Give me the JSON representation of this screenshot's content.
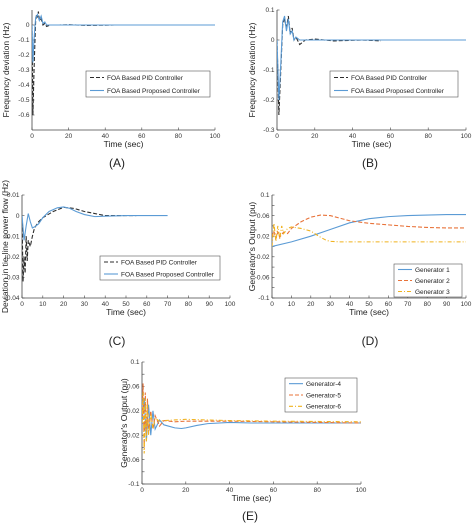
{
  "colors": {
    "blue": "#5b9bd5",
    "dark": "#2d2d2d",
    "orange": "#e8733a",
    "gold": "#f0b21f",
    "axis": "#444444"
  },
  "chart_data": [
    {
      "type": "line",
      "caption": "(A)",
      "xlabel": "Time (sec)",
      "ylabel": "Frequency deviation (Hz)",
      "xlim": [
        0,
        100
      ],
      "ylim": [
        -0.7,
        0.1
      ],
      "xticks": [
        0,
        20,
        40,
        60,
        80,
        100
      ],
      "yticks": [
        -0.6,
        -0.5,
        -0.4,
        -0.3,
        -0.2,
        -0.1,
        0
      ],
      "legend_position": "center-right",
      "series": [
        {
          "name": "FOA Based PID Controller",
          "color": "#2d2d2d",
          "dash": "dashed",
          "x": [
            0,
            0.5,
            1,
            1.5,
            2,
            2.5,
            3,
            3.5,
            4,
            5,
            6,
            7,
            8,
            10,
            15,
            20,
            30,
            45
          ],
          "y": [
            0,
            -0.6,
            -0.35,
            -0.15,
            0.03,
            0.07,
            0.05,
            0.09,
            0.03,
            0.04,
            0,
            0.01,
            -0.01,
            0,
            0,
            0.002,
            -0.003,
            0
          ]
        },
        {
          "name": "FOA Based Proposed Controller",
          "color": "#5b9bd5",
          "dash": "solid",
          "x": [
            0,
            0.5,
            1,
            1.5,
            2,
            3,
            4,
            5,
            6,
            7,
            8,
            10,
            15,
            100
          ],
          "y": [
            0,
            -0.25,
            -0.12,
            -0.03,
            0.05,
            0.07,
            0.03,
            0.06,
            0.01,
            0.02,
            0,
            0,
            0,
            0
          ]
        }
      ]
    },
    {
      "type": "line",
      "caption": "(B)",
      "xlabel": "Time (sec)",
      "ylabel": "Frequency deviation (Hz)",
      "xlim": [
        0,
        100
      ],
      "ylim": [
        -0.3,
        0.1
      ],
      "xticks": [
        0,
        20,
        40,
        60,
        80,
        100
      ],
      "yticks": [
        -0.3,
        -0.2,
        -0.1,
        0,
        0.1
      ],
      "legend_position": "center-right",
      "series": [
        {
          "name": "FOA Based PID Controller",
          "color": "#2d2d2d",
          "dash": "dashed",
          "x": [
            0,
            1,
            2,
            3,
            4,
            5,
            6,
            7,
            8,
            9,
            10,
            12,
            15,
            20,
            30,
            45,
            55
          ],
          "y": [
            0,
            -0.25,
            -0.1,
            0.05,
            0.07,
            0.04,
            0.08,
            0.02,
            0.04,
            0,
            0.01,
            -0.015,
            0,
            0.003,
            -0.003,
            0,
            -0.003
          ]
        },
        {
          "name": "FOA Based Proposed Controller",
          "color": "#5b9bd5",
          "dash": "solid",
          "x": [
            0,
            1,
            2,
            3,
            4,
            5,
            6,
            7,
            8,
            9,
            10,
            12,
            15,
            100
          ],
          "y": [
            0,
            -0.2,
            -0.08,
            0.06,
            0.08,
            0.03,
            0.07,
            0.02,
            0.03,
            0,
            0.01,
            0,
            0,
            0
          ]
        }
      ]
    },
    {
      "type": "line",
      "caption": "(C)",
      "xlabel": "Time (sec)",
      "ylabel": "Deviation in tie-line power flow (Hz)",
      "xlim": [
        0,
        100
      ],
      "ylim": [
        -0.04,
        0.01
      ],
      "xticks": [
        0,
        10,
        20,
        30,
        40,
        50,
        60,
        70,
        80,
        90,
        100
      ],
      "yticks": [
        -0.04,
        -0.03,
        -0.02,
        -0.01,
        0,
        0.01
      ],
      "legend_position": "center-right",
      "series": [
        {
          "name": "FOA Based PID Controller",
          "color": "#2d2d2d",
          "dash": "dashed",
          "x": [
            0,
            0.5,
            1,
            1.5,
            2,
            2.5,
            3,
            4,
            5,
            6,
            8,
            10,
            15,
            20,
            25,
            30,
            35,
            40,
            45,
            50,
            55
          ],
          "y": [
            0,
            -0.032,
            -0.02,
            -0.028,
            -0.01,
            -0.022,
            -0.012,
            -0.015,
            -0.01,
            -0.006,
            -0.003,
            -0.001,
            0.002,
            0.004,
            0.0035,
            0.002,
            0.001,
            0,
            0,
            0,
            0
          ]
        },
        {
          "name": "FOA Based Proposed Controller",
          "color": "#5b9bd5",
          "dash": "solid",
          "x": [
            0,
            1,
            2,
            3,
            4,
            5,
            6,
            8,
            10,
            13,
            17,
            20,
            23,
            26,
            30,
            35,
            40,
            50,
            60,
            70
          ],
          "y": [
            0,
            -0.012,
            -0.005,
            0.001,
            -0.003,
            -0.006,
            -0.0055,
            -0.004,
            -0.001,
            0.002,
            0.0038,
            0.0042,
            0.0035,
            0.002,
            0.0005,
            -0.0005,
            -0.0003,
            0,
            0,
            0
          ]
        }
      ]
    },
    {
      "type": "line",
      "caption": "(D)",
      "xlabel": "Time (sec)",
      "ylabel": "Generator's Output (pu)",
      "xlim": [
        0,
        100
      ],
      "ylim": [
        -0.1,
        0.1
      ],
      "xticks": [
        0,
        10,
        20,
        30,
        40,
        50,
        60,
        70,
        80,
        90,
        100
      ],
      "yticks": [
        -0.1,
        -0.08,
        -0.06,
        -0.04,
        -0.02,
        0,
        0.02,
        0.04,
        0.06,
        0.08,
        0.1
      ],
      "legend_position": "lower-right",
      "series": [
        {
          "name": "Generator 1",
          "color": "#5b9bd5",
          "dash": "solid",
          "x": [
            0,
            10,
            20,
            30,
            40,
            50,
            60,
            70,
            80,
            90,
            100
          ],
          "y": [
            0,
            0.009,
            0.02,
            0.033,
            0.046,
            0.054,
            0.058,
            0.06,
            0.061,
            0.062,
            0.062
          ]
        },
        {
          "name": "Generator 2",
          "color": "#e8733a",
          "dash": "dashed",
          "x": [
            0,
            1,
            2,
            3,
            4,
            6,
            8,
            10,
            15,
            20,
            25,
            30,
            35,
            40,
            50,
            60,
            70,
            80,
            90,
            100
          ],
          "y": [
            0.02,
            0.03,
            0.015,
            0.028,
            0.018,
            0.028,
            0.025,
            0.035,
            0.048,
            0.057,
            0.061,
            0.06,
            0.055,
            0.05,
            0.045,
            0.042,
            0.039,
            0.037,
            0.036,
            0.036
          ]
        },
        {
          "name": "Generator 3",
          "color": "#f0b21f",
          "dash": "dashdot",
          "x": [
            0,
            1,
            2,
            3,
            4,
            5,
            6,
            8,
            10,
            15,
            20,
            25,
            28,
            30,
            35,
            40,
            50,
            60,
            80,
            100
          ],
          "y": [
            0,
            0.045,
            0.01,
            0.04,
            0.015,
            0.04,
            0.025,
            0.035,
            0.038,
            0.035,
            0.03,
            0.018,
            0.012,
            0.01,
            0.009,
            0.009,
            0.009,
            0.009,
            0.009,
            0.009
          ]
        }
      ]
    },
    {
      "type": "line",
      "caption": "(E)",
      "xlabel": "Time (sec)",
      "ylabel": "Generator's Output (pu)",
      "xlim": [
        0,
        100
      ],
      "ylim": [
        -0.1,
        0.1
      ],
      "xticks": [
        0,
        20,
        40,
        60,
        80,
        100
      ],
      "yticks": [
        -0.1,
        -0.08,
        -0.06,
        -0.04,
        -0.02,
        0,
        0.02,
        0.04,
        0.06,
        0.08,
        0.1
      ],
      "legend_position": "top-right",
      "series": [
        {
          "name": "Generator-4",
          "color": "#5b9bd5",
          "dash": "solid",
          "x": [
            0,
            1,
            2,
            3,
            4,
            5,
            6,
            8,
            10,
            12,
            15,
            18,
            20,
            25,
            30,
            40,
            50,
            100
          ],
          "y": [
            0,
            0.04,
            -0.03,
            0.03,
            -0.02,
            0.02,
            -0.01,
            0.005,
            -0.003,
            -0.005,
            -0.008,
            -0.009,
            -0.008,
            -0.004,
            -0.001,
            0.001,
            0,
            0
          ]
        },
        {
          "name": "Generator-5",
          "color": "#e8733a",
          "dash": "dashed",
          "x": [
            0,
            0.5,
            1,
            1.5,
            2,
            2.5,
            3,
            4,
            5,
            6,
            8,
            10,
            15,
            20,
            30,
            40,
            60,
            100
          ],
          "y": [
            0,
            0.065,
            -0.04,
            0.05,
            -0.02,
            0.04,
            -0.015,
            0.02,
            -0.01,
            0.012,
            -0.005,
            0.004,
            0.002,
            0.003,
            0.003,
            0.003,
            0.002,
            0
          ]
        },
        {
          "name": "Generator-6",
          "color": "#f0b21f",
          "dash": "dashdot",
          "x": [
            0,
            0.5,
            1,
            1.5,
            2,
            2.5,
            3,
            4,
            5,
            6,
            8,
            10,
            15,
            20,
            30,
            40,
            60,
            100
          ],
          "y": [
            0,
            0.05,
            -0.05,
            0.04,
            -0.03,
            0.03,
            -0.02,
            0.015,
            -0.01,
            0.008,
            0.003,
            0.004,
            0.005,
            0.006,
            0.005,
            0.004,
            0.003,
            0.002
          ]
        }
      ]
    }
  ]
}
